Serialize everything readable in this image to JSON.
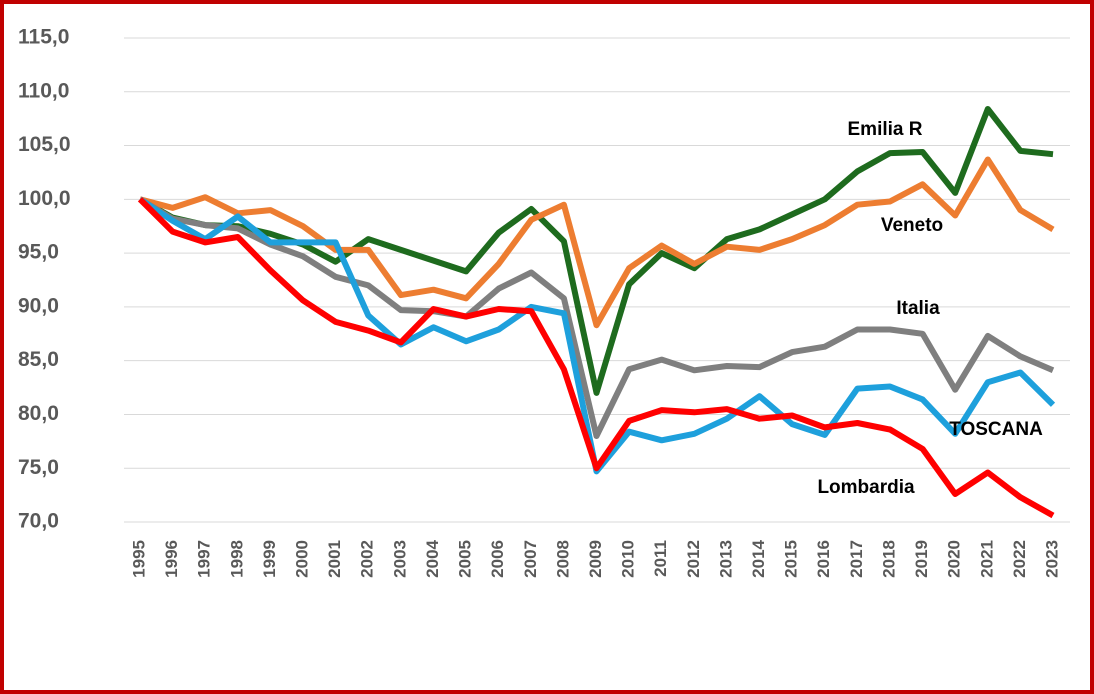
{
  "chart_data": {
    "type": "line",
    "categories": [
      "1995",
      "1996",
      "1997",
      "1998",
      "1999",
      "2000",
      "2001",
      "2002",
      "2003",
      "2004",
      "2005",
      "2006",
      "2007",
      "2008",
      "2009",
      "2010",
      "2011",
      "2012",
      "2013",
      "2014",
      "2015",
      "2016",
      "2017",
      "2018",
      "2019",
      "2020",
      "2021",
      "2022",
      "2023"
    ],
    "series": [
      {
        "name": "Emilia R",
        "color": "#1e6b1e",
        "values": [
          100,
          98.3,
          97.6,
          97.5,
          96.8,
          95.8,
          94.2,
          96.3,
          95.3,
          94.3,
          93.3,
          96.9,
          99.1,
          96.1,
          82.0,
          92.1,
          95.0,
          93.6,
          96.3,
          97.2,
          98.6,
          100.0,
          102.6,
          104.3,
          104.4,
          100.6,
          108.4,
          104.5,
          104.2
        ]
      },
      {
        "name": "Veneto",
        "color": "#ed7d31",
        "values": [
          100,
          99.2,
          100.2,
          98.7,
          99.0,
          97.5,
          95.3,
          95.3,
          91.1,
          91.6,
          90.8,
          94.0,
          98.1,
          99.5,
          88.3,
          93.6,
          95.7,
          94.0,
          95.6,
          95.3,
          96.3,
          97.6,
          99.5,
          99.8,
          101.4,
          98.5,
          103.7,
          99.0,
          97.2
        ]
      },
      {
        "name": "Italia",
        "color": "#7f7f7f",
        "values": [
          100,
          98.2,
          97.6,
          97.3,
          95.8,
          94.7,
          92.8,
          92.0,
          89.7,
          89.6,
          89.1,
          91.7,
          93.2,
          90.8,
          78.0,
          84.2,
          85.1,
          84.1,
          84.5,
          84.4,
          85.8,
          86.3,
          87.9,
          87.9,
          87.5,
          82.3,
          87.3,
          85.4,
          84.1
        ]
      },
      {
        "name": "TOSCANA",
        "color": "#1ea0dc",
        "values": [
          100,
          98.0,
          96.3,
          98.4,
          96.0,
          96.0,
          96.0,
          89.2,
          86.5,
          88.1,
          86.8,
          87.9,
          90.0,
          89.4,
          74.7,
          78.4,
          77.6,
          78.2,
          79.6,
          81.7,
          79.1,
          78.1,
          82.4,
          82.6,
          81.4,
          78.2,
          83.0,
          83.9,
          80.9
        ]
      },
      {
        "name": "Lombardia",
        "color": "#ff0000",
        "values": [
          100,
          97.0,
          96.0,
          96.5,
          93.4,
          90.6,
          88.6,
          87.8,
          86.7,
          89.8,
          89.1,
          89.8,
          89.6,
          84.2,
          75.0,
          79.4,
          80.4,
          80.2,
          80.5,
          79.6,
          79.9,
          78.8,
          79.2,
          78.6,
          76.8,
          72.6,
          74.6,
          72.3,
          70.6
        ]
      }
    ],
    "ylim": [
      70,
      115
    ],
    "yticks": [
      {
        "value": 70,
        "label": "70,0"
      },
      {
        "value": 75,
        "label": "75,0"
      },
      {
        "value": 80,
        "label": "80,0"
      },
      {
        "value": 85,
        "label": "85,0"
      },
      {
        "value": 90,
        "label": "90,0"
      },
      {
        "value": 95,
        "label": "95,0"
      },
      {
        "value": 100,
        "label": "100,0"
      },
      {
        "value": 105,
        "label": "105,0"
      },
      {
        "value": 110,
        "label": "110,0"
      },
      {
        "value": 115,
        "label": "115,0"
      }
    ],
    "grid": true
  }
}
